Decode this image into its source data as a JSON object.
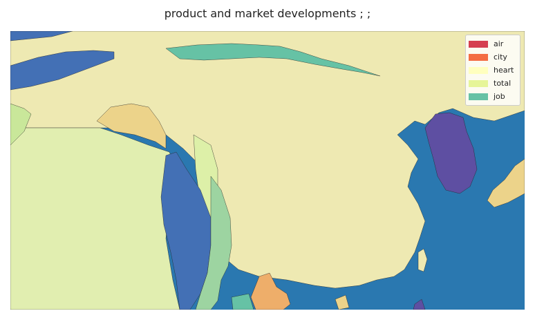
{
  "title": "product and market developments ; ;",
  "legend": [
    {
      "label": "air",
      "color": "#d53e4f"
    },
    {
      "label": "city",
      "color": "#f46d43"
    },
    {
      "label": "heart",
      "color": "#ffffbf"
    },
    {
      "label": "total",
      "color": "#e6f598"
    },
    {
      "label": "job",
      "color": "#66c2a5"
    }
  ],
  "colors": {
    "sea": "#2a78b0",
    "land_main": "#eee9b2",
    "land_west": "#e1eeb0",
    "blue_region": "#4370b5",
    "purple_region": "#5e4fa2",
    "green_region": "#9dd4a1",
    "tan_region": "#ecd38a",
    "orange_region": "#eeae6a",
    "teal_region": "#66c2a5"
  },
  "legend_position": "top-right"
}
